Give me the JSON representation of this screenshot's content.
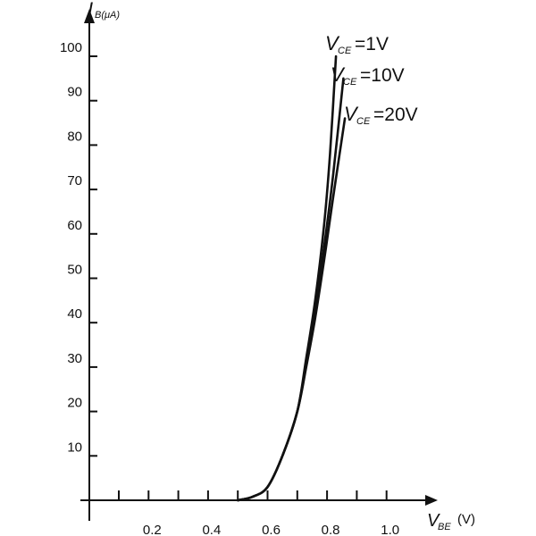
{
  "chart_data": {
    "type": "line",
    "title": "",
    "xlabel": {
      "main": "V",
      "sub": "BE",
      "unit": "(V)"
    },
    "ylabel": {
      "main": "I",
      "sub": "B(μA)"
    },
    "xlim": [
      0,
      1.1
    ],
    "ylim": [
      0,
      105
    ],
    "x_tick_labels": [
      "0.2",
      "0.4",
      "0.6",
      "0.8",
      "1.0"
    ],
    "x_tick_values": [
      0.2,
      0.4,
      0.6,
      0.8,
      1.0
    ],
    "x_minor_ticks": [
      0.1,
      0.2,
      0.3,
      0.4,
      0.5,
      0.6,
      0.7,
      0.8,
      0.9,
      1.0
    ],
    "y_ticks": [
      10,
      20,
      30,
      40,
      50,
      60,
      70,
      80,
      90,
      100
    ],
    "grid": false,
    "series": [
      {
        "name_main": "V",
        "name_sub": "CE",
        "name_rest": "=1V",
        "points": [
          [
            0.5,
            0
          ],
          [
            0.55,
            0.8
          ],
          [
            0.6,
            3
          ],
          [
            0.65,
            10
          ],
          [
            0.7,
            20
          ],
          [
            0.73,
            32
          ],
          [
            0.76,
            45
          ],
          [
            0.79,
            62
          ],
          [
            0.81,
            78
          ],
          [
            0.83,
            100
          ]
        ]
      },
      {
        "name_main": "V",
        "name_sub": "CE",
        "name_rest": "=10V",
        "points": [
          [
            0.5,
            0
          ],
          [
            0.55,
            0.8
          ],
          [
            0.6,
            3
          ],
          [
            0.65,
            10
          ],
          [
            0.7,
            20
          ],
          [
            0.73,
            31
          ],
          [
            0.76,
            43
          ],
          [
            0.79,
            57
          ],
          [
            0.82,
            73
          ],
          [
            0.855,
            95
          ]
        ]
      },
      {
        "name_main": "V",
        "name_sub": "CE",
        "name_rest": "=20V",
        "points": [
          [
            0.5,
            0
          ],
          [
            0.55,
            0.8
          ],
          [
            0.6,
            3
          ],
          [
            0.65,
            10
          ],
          [
            0.7,
            20
          ],
          [
            0.73,
            30
          ],
          [
            0.76,
            41
          ],
          [
            0.79,
            54
          ],
          [
            0.82,
            68
          ],
          [
            0.86,
            86
          ]
        ]
      }
    ]
  }
}
